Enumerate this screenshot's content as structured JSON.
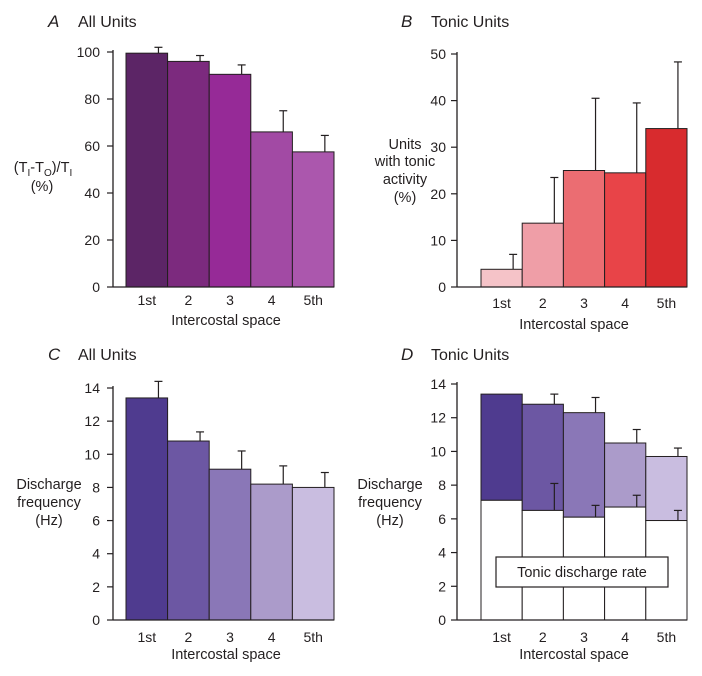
{
  "chart_data": [
    {
      "panel": "A",
      "title": "All Units",
      "type": "bar",
      "categories": [
        "1st",
        "2",
        "3",
        "4",
        "5th"
      ],
      "xlabel": "Intercostal space",
      "ylabel_lines": [
        "(T",
        "I",
        "-T",
        "O",
        ")/T",
        "I",
        "(%)"
      ],
      "ylim": [
        0,
        100
      ],
      "yticks": [
        0,
        20,
        40,
        60,
        80,
        100
      ],
      "series": [
        {
          "values": [
            99.5,
            96.0,
            90.5,
            66.0,
            57.5
          ],
          "errors": [
            2.5,
            2.5,
            4.0,
            9.0,
            7.0
          ]
        }
      ],
      "colors": [
        "#5c2566",
        "#7c2a7e",
        "#962a97",
        "#a24aa4",
        "#ab57ad"
      ]
    },
    {
      "panel": "B",
      "title": "Tonic Units",
      "type": "bar",
      "categories": [
        "1st",
        "2",
        "3",
        "4",
        "5th"
      ],
      "xlabel": "Intercostal space",
      "ylabel_lines": [
        "Units",
        "with tonic",
        "activity",
        "(%)"
      ],
      "ylim": [
        0,
        50
      ],
      "yticks": [
        0,
        10,
        20,
        30,
        40,
        50
      ],
      "series": [
        {
          "values": [
            3.8,
            13.7,
            25.0,
            24.5,
            34.0
          ],
          "errors": [
            3.2,
            9.8,
            15.5,
            15.0,
            14.3
          ]
        }
      ],
      "colors": [
        "#f5c3c8",
        "#ef9ea7",
        "#eb6d72",
        "#e84448",
        "#d82b2e"
      ]
    },
    {
      "panel": "C",
      "title": "All Units",
      "type": "bar",
      "categories": [
        "1st",
        "2",
        "3",
        "4",
        "5th"
      ],
      "xlabel": "Intercostal space",
      "ylabel_lines": [
        "Discharge",
        "frequency",
        "(Hz)"
      ],
      "ylim": [
        0,
        14
      ],
      "yticks": [
        0,
        2,
        4,
        6,
        8,
        10,
        12,
        14
      ],
      "series": [
        {
          "values": [
            13.4,
            10.8,
            9.1,
            8.2,
            8.0
          ],
          "errors": [
            1.0,
            0.55,
            1.1,
            1.1,
            0.9
          ]
        }
      ],
      "colors": [
        "#4f3b8f",
        "#6c57a3",
        "#8a77b7",
        "#ab9bca",
        "#c9bde0"
      ]
    },
    {
      "panel": "D",
      "title": "Tonic Units",
      "type": "bar",
      "categories": [
        "1st",
        "2",
        "3",
        "4",
        "5th"
      ],
      "xlabel": "Intercostal space",
      "ylabel_lines": [
        "Discharge",
        "frequency",
        "(Hz)"
      ],
      "ylim": [
        0,
        14
      ],
      "yticks": [
        0,
        2,
        4,
        6,
        8,
        10,
        12,
        14
      ],
      "series": [
        {
          "name": "Tonic discharge rate",
          "values": [
            7.1,
            6.5,
            6.1,
            6.7,
            5.9
          ],
          "errors": [
            0,
            1.6,
            0.7,
            0.7,
            0.6
          ]
        },
        {
          "values": [
            13.4,
            12.8,
            12.3,
            10.5,
            9.7
          ],
          "errors": [
            0,
            0.6,
            0.9,
            0.8,
            0.5
          ]
        }
      ],
      "colors": [
        "#4f3b8f",
        "#6c57a3",
        "#8a77b7",
        "#ab9bca",
        "#c9bde0"
      ],
      "box_label": "Tonic discharge rate"
    }
  ]
}
